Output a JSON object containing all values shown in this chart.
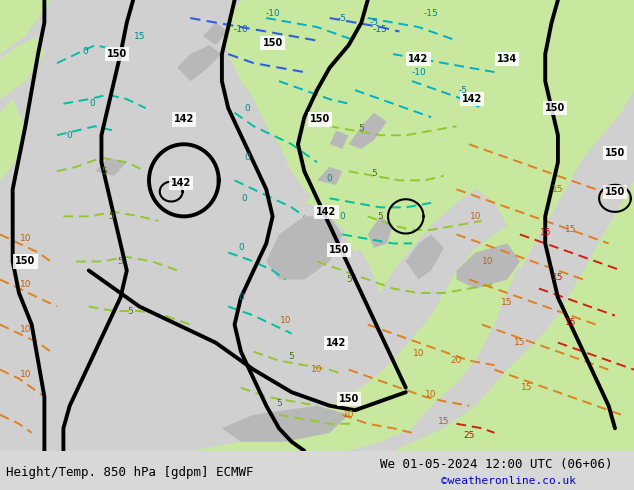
{
  "title_left": "Height/Temp. 850 hPa [gdpm] ECMWF",
  "title_right": "We 01-05-2024 12:00 UTC (06+06)",
  "credit": "©weatheronline.co.uk",
  "fig_width": 6.34,
  "fig_height": 4.9,
  "dpi": 100,
  "bg_color": "#d8d8d8",
  "land_gray": "#c8c8c8",
  "green_region": "#c8e8a0",
  "credit_color": "#0000cc",
  "bottom_text_color": "#000000",
  "font_size_bottom": 9,
  "font_size_credit": 8
}
